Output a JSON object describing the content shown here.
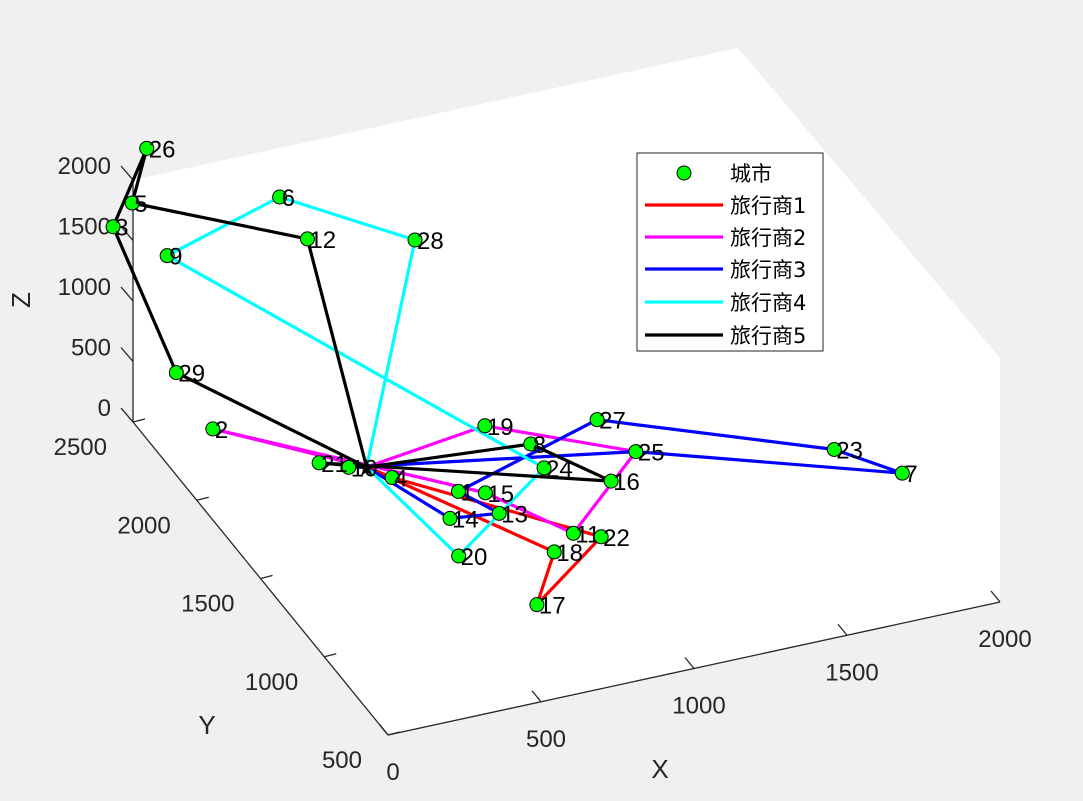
{
  "chart_data": {
    "type": "line",
    "title": "",
    "xlabel": "X",
    "ylabel": "Y",
    "zlabel": "Z",
    "x_ticks": [
      "0",
      "500",
      "1000",
      "1500",
      "2000"
    ],
    "y_ticks": [
      "500",
      "1000",
      "1500",
      "2000",
      "2500"
    ],
    "z_ticks": [
      "0",
      "500",
      "1000",
      "1500",
      "2000"
    ],
    "xlim": [
      0,
      2000
    ],
    "ylim": [
      500,
      2500
    ],
    "zlim": [
      0,
      2000
    ],
    "grid": false,
    "legend_position": "top-right",
    "depot": "★",
    "cities": {
      "name": "城市",
      "color": "#00ff00",
      "points": [
        {
          "id": 1,
          "label": "1",
          "x": 722,
          "y": 1680,
          "z": 90
        },
        {
          "id": 2,
          "label": "2",
          "x": 180,
          "y": 2306,
          "z": 95
        },
        {
          "id": 3,
          "label": "3",
          "x": 110,
          "y": 2920,
          "z": 1010
        },
        {
          "id": 4,
          "label": "4",
          "x": 580,
          "y": 1860,
          "z": 50
        },
        {
          "id": 5,
          "label": "5",
          "x": 110,
          "y": 2770,
          "z": 1400
        },
        {
          "id": 6,
          "label": "6",
          "x": 500,
          "y": 2550,
          "z": 1520
        },
        {
          "id": 7,
          "label": "7",
          "x": 1960,
          "y": 1170,
          "z": 220
        },
        {
          "id": 8,
          "label": "8",
          "x": 1000,
          "y": 1780,
          "z": 200
        },
        {
          "id": 9,
          "label": "9",
          "x": 170,
          "y": 2640,
          "z": 1100
        },
        {
          "id": 10,
          "label": "10",
          "x": 480,
          "y": 1960,
          "z": 60
        },
        {
          "id": 11,
          "label": "11",
          "x": 960,
          "y": 1350,
          "z": 40
        },
        {
          "id": 12,
          "label": "12",
          "x": 570,
          "y": 2500,
          "z": 1200
        },
        {
          "id": 13,
          "label": "13",
          "x": 780,
          "y": 1500,
          "z": 110
        },
        {
          "id": 14,
          "label": "14",
          "x": 640,
          "y": 1550,
          "z": 80
        },
        {
          "id": 15,
          "label": "15",
          "x": 810,
          "y": 1680,
          "z": 30
        },
        {
          "id": 16,
          "label": "16",
          "x": 1150,
          "y": 1510,
          "z": 160
        },
        {
          "id": 17,
          "label": "17",
          "x": 670,
          "y": 940,
          "z": 140
        },
        {
          "id": 18,
          "label": "18",
          "x": 810,
          "y": 1140,
          "z": 240
        },
        {
          "id": 19,
          "label": "19",
          "x": 900,
          "y": 1900,
          "z": 250
        },
        {
          "id": 20,
          "label": "20",
          "x": 560,
          "y": 1290,
          "z": 150
        },
        {
          "id": 21,
          "label": "21",
          "x": 400,
          "y": 2000,
          "z": 90
        },
        {
          "id": 22,
          "label": "22",
          "x": 980,
          "y": 1180,
          "z": 220
        },
        {
          "id": 23,
          "label": "23",
          "x": 1800,
          "y": 1320,
          "z": 310
        },
        {
          "id": 24,
          "label": "24",
          "x": 1010,
          "y": 1700,
          "z": 100
        },
        {
          "id": 25,
          "label": "25",
          "x": 1310,
          "y": 1700,
          "z": 70
        },
        {
          "id": 26,
          "label": "26",
          "x": 170,
          "y": 2800,
          "z": 1780
        },
        {
          "id": 27,
          "label": "27",
          "x": 1250,
          "y": 1860,
          "z": 160
        },
        {
          "id": 28,
          "label": "28",
          "x": 880,
          "y": 2400,
          "z": 1150
        },
        {
          "id": 29,
          "label": "29",
          "x": 150,
          "y": 2520,
          "z": 300
        }
      ]
    },
    "depot_point": {
      "x": 530,
      "y": 1940,
      "z": 60
    },
    "series": [
      {
        "name": "旅行商1",
        "color": "#ff0000",
        "route": [
          0,
          18,
          17,
          22,
          4,
          0
        ]
      },
      {
        "name": "旅行商2",
        "color": "#ff00ff",
        "route": [
          0,
          2,
          15,
          11,
          25,
          19,
          0
        ]
      },
      {
        "name": "旅行商3",
        "color": "#0000ff",
        "route": [
          0,
          14,
          13,
          1,
          27,
          23,
          7,
          25,
          10,
          0
        ]
      },
      {
        "name": "旅行商4",
        "color": "#00ffff",
        "route": [
          0,
          20,
          24,
          9,
          6,
          28,
          0
        ]
      },
      {
        "name": "旅行商5",
        "color": "#000000",
        "route": [
          0,
          29,
          3,
          26,
          5,
          12,
          0,
          8,
          16,
          21,
          0
        ]
      }
    ]
  }
}
